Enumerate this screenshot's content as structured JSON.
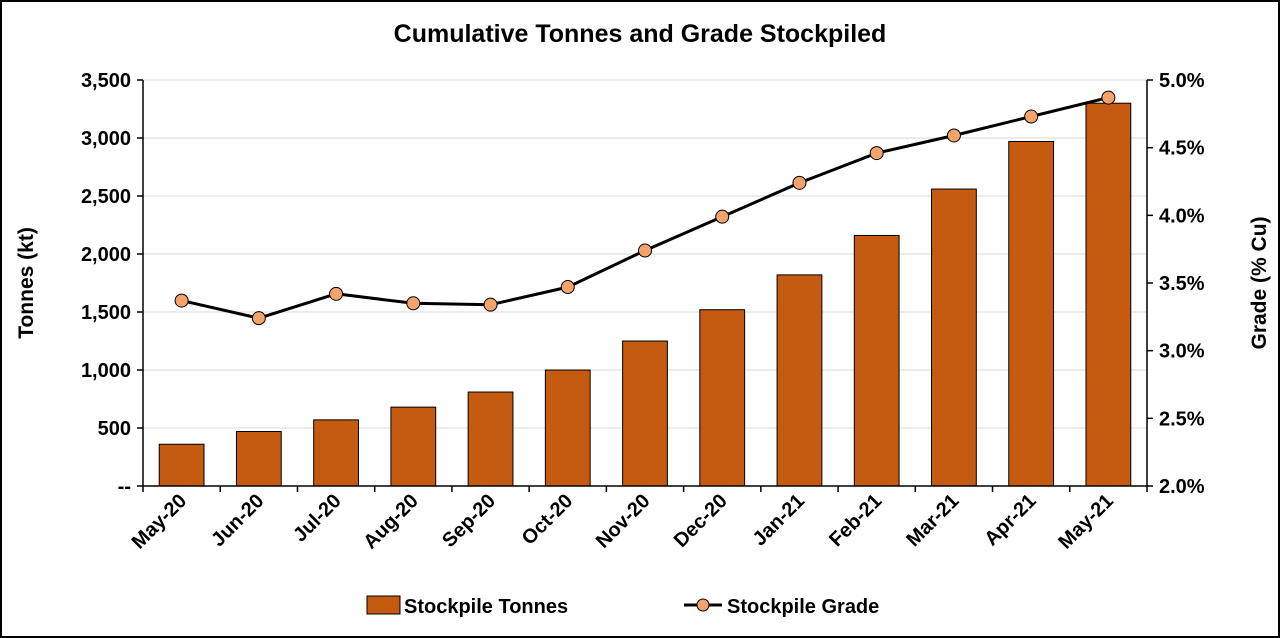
{
  "chart_data": {
    "type": "bar+line",
    "title": "Cumulative Tonnes and Grade Stockpiled",
    "categories": [
      "May-20",
      "Jun-20",
      "Jul-20",
      "Aug-20",
      "Sep-20",
      "Oct-20",
      "Nov-20",
      "Dec-20",
      "Jan-21",
      "Feb-21",
      "Mar-21",
      "Apr-21",
      "May-21"
    ],
    "series": [
      {
        "name": "Stockpile Tonnes",
        "type": "bar",
        "axis": "left",
        "color": "#C55A11",
        "values": [
          360,
          470,
          570,
          680,
          810,
          1000,
          1250,
          1520,
          1820,
          2160,
          2560,
          2970,
          3300
        ]
      },
      {
        "name": "Stockpile Grade",
        "type": "line",
        "axis": "right",
        "color": "#000000",
        "marker_color": "#F4A46A",
        "values": [
          3.37,
          3.24,
          3.42,
          3.35,
          3.34,
          3.47,
          3.74,
          3.99,
          4.24,
          4.46,
          4.59,
          4.73,
          4.87
        ]
      }
    ],
    "ylabel": "Tonnes (kt)",
    "ylabel2": "Grade (% Cu)",
    "ylim": [
      0,
      3500
    ],
    "y2lim": [
      2.0,
      5.0
    ],
    "y_ticks": [
      0,
      500,
      1000,
      1500,
      2000,
      2500,
      3000,
      3500
    ],
    "y_tick_labels": [
      "--",
      "500",
      "1,000",
      "1,500",
      "2,000",
      "2,500",
      "3,000",
      "3,500"
    ],
    "y2_ticks": [
      2.0,
      2.5,
      3.0,
      3.5,
      4.0,
      4.5,
      5.0
    ],
    "y2_tick_labels": [
      "2.0%",
      "2.5%",
      "3.0%",
      "3.5%",
      "4.0%",
      "4.5%",
      "5.0%"
    ],
    "grid": true,
    "legend": "bottom"
  }
}
